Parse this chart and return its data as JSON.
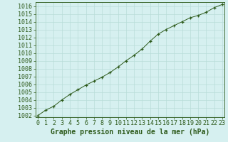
{
  "x": [
    0,
    1,
    2,
    3,
    4,
    5,
    6,
    7,
    8,
    9,
    10,
    11,
    12,
    13,
    14,
    15,
    16,
    17,
    18,
    19,
    20,
    21,
    22,
    23
  ],
  "y": [
    1002.0,
    1002.7,
    1003.2,
    1004.0,
    1004.7,
    1005.3,
    1005.9,
    1006.4,
    1006.9,
    1007.5,
    1008.2,
    1009.0,
    1009.7,
    1010.5,
    1011.5,
    1012.4,
    1013.0,
    1013.5,
    1014.0,
    1014.5,
    1014.8,
    1015.2,
    1015.8,
    1016.2
  ],
  "line_color": "#2d5a1b",
  "marker_color": "#2d5a1b",
  "bg_color": "#d6f0f0",
  "grid_color": "#b8ddd8",
  "xlabel": "Graphe pression niveau de la mer (hPa)",
  "ylim_min": 1002,
  "ylim_max": 1016,
  "xlim_min": 0,
  "xlim_max": 23,
  "xtick_labels": [
    "0",
    "1",
    "2",
    "3",
    "4",
    "5",
    "6",
    "7",
    "8",
    "9",
    "10",
    "11",
    "12",
    "13",
    "14",
    "15",
    "16",
    "17",
    "18",
    "19",
    "20",
    "21",
    "22",
    "23"
  ],
  "title_fontsize": 7,
  "tick_fontsize": 6
}
